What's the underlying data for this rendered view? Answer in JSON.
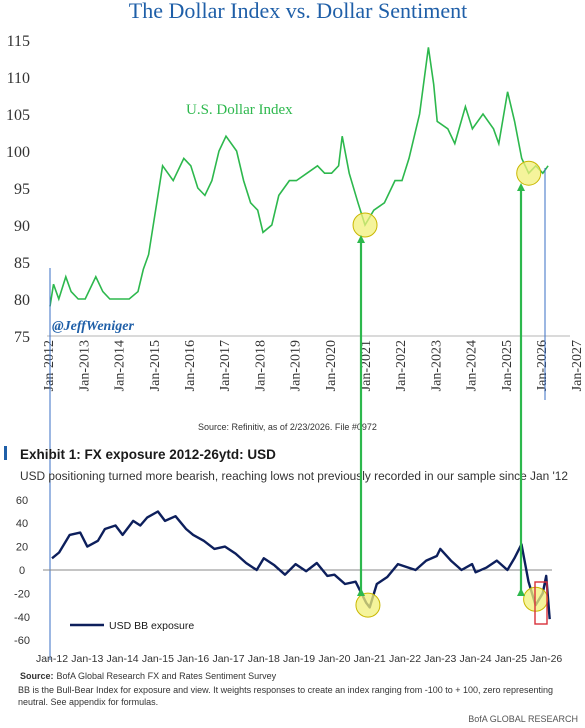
{
  "title": "The Dollar Index vs. Dollar Sentiment",
  "colors": {
    "title": "#1f5fa8",
    "dxy_line": "#2db84d",
    "bofa_line": "#0d1f5c",
    "arrow": "#2db84d",
    "highlight_fill": "#f2f07a",
    "highlight_stroke": "#c9b700",
    "red_box": "#d9303a",
    "exhibit_bar": "#1f5fa8",
    "axis_text": "#333333"
  },
  "chart_data": [
    {
      "type": "line",
      "title": "",
      "series_label": "U.S. Dollar Index",
      "watermark": "@JeffWeniger",
      "source": "Source: Refinitiv, as of 2/23/2026. File #0972",
      "xlabel": "",
      "ylabel": "",
      "ylim": [
        75,
        115
      ],
      "yticks": [
        "75",
        "80",
        "85",
        "90",
        "95",
        "100",
        "105",
        "110",
        "115"
      ],
      "xticks": [
        "Jan-2012",
        "Jan-2013",
        "Jan-2014",
        "Jan-2015",
        "Jan-2016",
        "Jan-2017",
        "Jan-2018",
        "Jan-2019",
        "Jan-2020",
        "Jan-2021",
        "Jan-2022",
        "Jan-2023",
        "Jan-2024",
        "Jan-2025",
        "Jan-2026",
        "Jan-2027"
      ],
      "xlim": [
        2012.0,
        2027.0
      ],
      "grid": false,
      "series": [
        {
          "name": "U.S. Dollar Index",
          "x": [
            2012.0,
            2012.1,
            2012.25,
            2012.45,
            2012.6,
            2012.8,
            2013.0,
            2013.3,
            2013.5,
            2013.7,
            2014.0,
            2014.25,
            2014.5,
            2014.65,
            2014.8,
            2015.0,
            2015.2,
            2015.5,
            2015.8,
            2016.0,
            2016.2,
            2016.4,
            2016.6,
            2016.8,
            2017.0,
            2017.3,
            2017.5,
            2017.7,
            2017.9,
            2018.05,
            2018.3,
            2018.5,
            2018.8,
            2019.0,
            2019.3,
            2019.6,
            2019.8,
            2020.0,
            2020.2,
            2020.3,
            2020.5,
            2020.75,
            2020.95,
            2021.2,
            2021.5,
            2021.8,
            2022.0,
            2022.2,
            2022.5,
            2022.75,
            2022.9,
            2023.0,
            2023.3,
            2023.5,
            2023.8,
            2024.0,
            2024.3,
            2024.6,
            2024.75,
            2025.0,
            2025.2,
            2025.4,
            2025.6,
            2025.8,
            2026.0,
            2026.15
          ],
          "y": [
            79,
            82,
            80,
            83,
            81,
            80,
            80,
            83,
            81,
            80,
            80,
            80,
            81,
            84,
            86,
            92,
            98,
            96,
            99,
            98,
            95,
            94,
            96,
            100,
            102,
            100,
            96,
            93,
            92,
            89,
            90,
            94,
            96,
            96,
            97,
            98,
            97,
            97,
            98,
            102,
            97,
            93,
            90,
            92,
            93,
            96,
            96,
            99,
            105,
            114,
            109,
            104,
            103,
            101,
            106,
            103,
            105,
            103,
            101,
            108,
            104,
            99,
            97,
            98,
            97,
            98
          ]
        }
      ],
      "highlights": [
        {
          "x": 2020.95,
          "y": 90
        },
        {
          "x": 2025.6,
          "y": 97
        }
      ]
    },
    {
      "type": "line",
      "title": "Exhibit 1: FX exposure 2012-26ytd: USD",
      "subtitle": "USD positioning turned more bearish, reaching lows not previously recorded in our sample since Jan '12",
      "legend": "USD BB exposure",
      "source_label": "Source:",
      "source": "BofA Global Research FX and Rates Sentiment Survey",
      "note": "BB is the Bull-Bear Index for exposure and view. It weights responses to create an index ranging from -100 to + 100, zero representing neutral. See appendix for formulas.",
      "brand": "BofA GLOBAL RESEARCH",
      "ylim": [
        -60,
        60
      ],
      "yticks": [
        "60",
        "40",
        "20",
        "0",
        "-20",
        "-40",
        "-60"
      ],
      "xticks": [
        "Jan-12",
        "Jan-13",
        "Jan-14",
        "Jan-15",
        "Jan-16",
        "Jan-17",
        "Jan-18",
        "Jan-19",
        "Jan-20",
        "Jan-21",
        "Jan-22",
        "Jan-23",
        "Jan-24",
        "Jan-25",
        "Jan-26"
      ],
      "xlim": [
        2012.0,
        2026.0
      ],
      "series": [
        {
          "name": "USD BB exposure",
          "x": [
            2012.0,
            2012.2,
            2012.5,
            2012.8,
            2013.0,
            2013.3,
            2013.5,
            2013.8,
            2014.0,
            2014.3,
            2014.5,
            2014.7,
            2015.0,
            2015.2,
            2015.5,
            2015.8,
            2016.0,
            2016.3,
            2016.6,
            2016.9,
            2017.2,
            2017.5,
            2017.8,
            2018.0,
            2018.3,
            2018.6,
            2018.9,
            2019.2,
            2019.5,
            2019.8,
            2020.0,
            2020.3,
            2020.6,
            2020.9,
            2021.0,
            2021.2,
            2021.5,
            2021.8,
            2022.0,
            2022.3,
            2022.6,
            2022.9,
            2023.0,
            2023.3,
            2023.6,
            2023.9,
            2024.0,
            2024.3,
            2024.6,
            2024.9,
            2025.1,
            2025.3,
            2025.5,
            2025.7,
            2025.9,
            2026.0,
            2026.1
          ],
          "y": [
            10,
            15,
            30,
            32,
            20,
            25,
            35,
            38,
            30,
            42,
            38,
            45,
            50,
            42,
            46,
            35,
            30,
            25,
            18,
            20,
            14,
            6,
            0,
            10,
            4,
            -4,
            5,
            -1,
            6,
            -5,
            -4,
            -12,
            -10,
            -28,
            -32,
            -12,
            -6,
            5,
            3,
            0,
            8,
            12,
            18,
            8,
            0,
            5,
            -2,
            2,
            8,
            0,
            10,
            22,
            -10,
            -30,
            -20,
            -5,
            -42
          ]
        }
      ],
      "highlights": [
        {
          "x": 2020.95,
          "y": -30
        },
        {
          "x": 2025.7,
          "y": -25
        }
      ]
    }
  ]
}
